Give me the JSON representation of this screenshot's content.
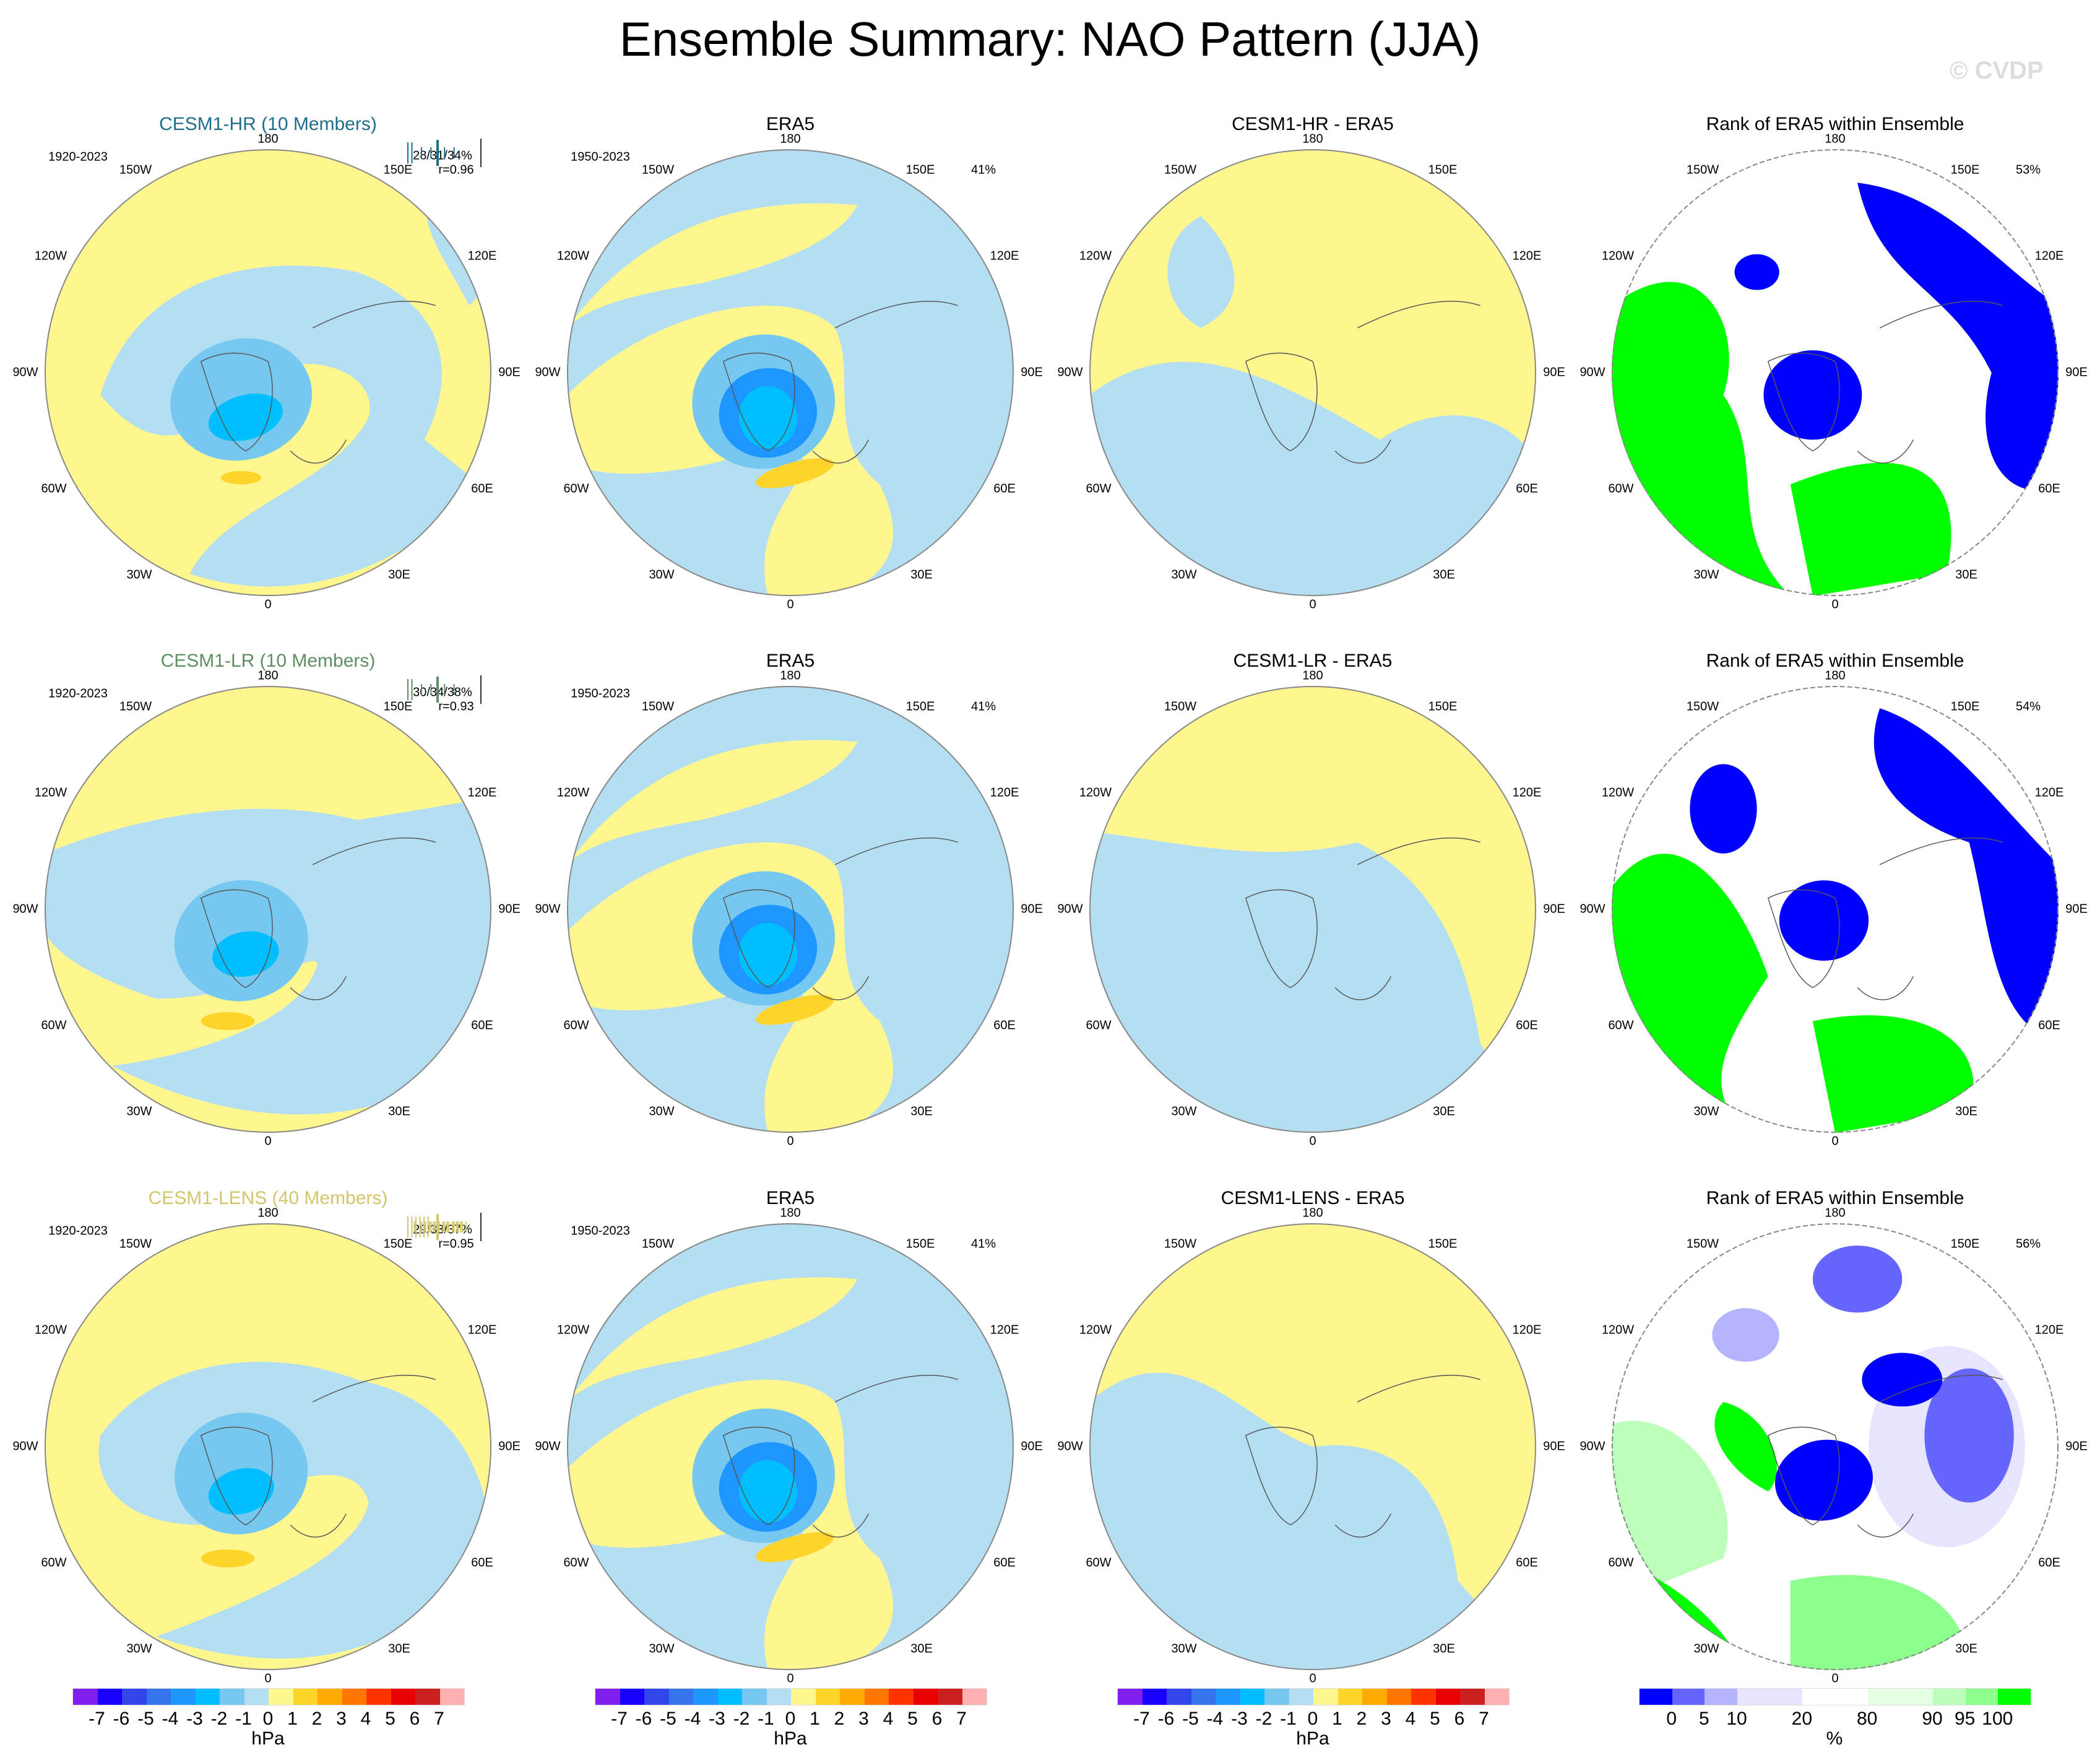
{
  "title": "Ensemble Summary: NAO Pattern (JJA)",
  "watermark": "© CVDP",
  "lon_labels": {
    "top": "180",
    "bottom": "0",
    "w150": "150W",
    "w120": "120W",
    "w90": "90W",
    "w60": "60W",
    "w30": "30W",
    "e150": "150E",
    "e120": "120E",
    "e90": "90E",
    "e60": "60E",
    "e30": "30E"
  },
  "rows": [
    {
      "model": {
        "title": "CESM1-HR (10 Members)",
        "color": "#1f6f8b",
        "years": "1920-2023",
        "stats": "28/31/34%",
        "r": "r=0.96"
      },
      "obs": {
        "title": "ERA5",
        "years": "1950-2023",
        "pct": "41%"
      },
      "diff": {
        "title": "CESM1-HR - ERA5"
      },
      "rank": {
        "title": "Rank of ERA5 within Ensemble",
        "pct": "53%"
      }
    },
    {
      "model": {
        "title": "CESM1-LR (10 Members)",
        "color": "#5e8f63",
        "years": "1920-2023",
        "stats": "30/34/38%",
        "r": "r=0.93"
      },
      "obs": {
        "title": "ERA5",
        "years": "1950-2023",
        "pct": "41%"
      },
      "diff": {
        "title": "CESM1-LR - ERA5"
      },
      "rank": {
        "title": "Rank of ERA5 within Ensemble",
        "pct": "54%"
      }
    },
    {
      "model": {
        "title": "CESM1-LENS (40 Members)",
        "color": "#d2c56a",
        "years": "1920-2023",
        "stats": "29/33/37%",
        "r": "r=0.95"
      },
      "obs": {
        "title": "ERA5",
        "years": "1950-2023",
        "pct": "41%"
      },
      "diff": {
        "title": "CESM1-LENS - ERA5"
      },
      "rank": {
        "title": "Rank of ERA5 within Ensemble",
        "pct": "56%"
      }
    }
  ],
  "chart_data": {
    "type": "heatmap",
    "projection": "north polar stereographic",
    "panel_grid": "3 rows x 4 columns",
    "colorbar_hpa": {
      "unit": "hPa",
      "zero_label": "0",
      "labels": [
        "-7",
        "-6",
        "-5",
        "-4",
        "-3",
        "-2",
        "-1",
        "0",
        "1",
        "2",
        "3",
        "4",
        "5",
        "6",
        "7"
      ],
      "colors": [
        "#8020ee",
        "#1a00ff",
        "#3046e8",
        "#3574ea",
        "#1e96ff",
        "#00bfff",
        "#77c8f0",
        "#b4dff2",
        "#fff68f",
        "#ffd42a",
        "#ffaa00",
        "#ff7700",
        "#ff3300",
        "#e80000",
        "#cc1f1f",
        "#ffb0b0"
      ]
    },
    "colorbar_rank": {
      "unit": "%",
      "zero_label": "0",
      "labels": [
        "0",
        "5",
        "10",
        "20",
        "80",
        "90",
        "95",
        "100"
      ],
      "colors": [
        "#0000ff",
        "#6666ff",
        "#b3b3ff",
        "#e5e5ff",
        "#ffffff",
        "#e5ffe5",
        "#bbffbb",
        "#8cff8c",
        "#00ff00"
      ],
      "bin_widths": [
        1,
        1,
        1,
        2,
        2,
        2,
        1,
        1,
        1
      ]
    }
  }
}
